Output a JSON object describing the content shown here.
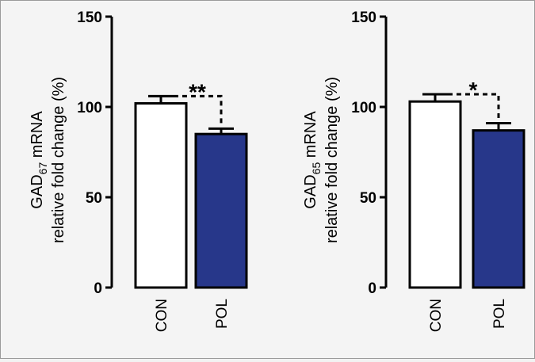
{
  "chart_data": [
    {
      "type": "bar",
      "ylabel_line1": {
        "main": "GAD",
        "sub": "67",
        "rest": " mRNA"
      },
      "ylabel_line2": "relative fold change (%)",
      "ylim": [
        0,
        150
      ],
      "yticks": [
        {
          "value": 0,
          "label": "0"
        },
        {
          "value": 50,
          "label": "50"
        },
        {
          "value": 100,
          "label": "100"
        },
        {
          "value": 150,
          "label": "150"
        }
      ],
      "categories": [
        "CON",
        "POL"
      ],
      "values": [
        102,
        85
      ],
      "errors": [
        4,
        3
      ],
      "bar_colors": [
        "#ffffff",
        "#27378a"
      ],
      "significance": "**"
    },
    {
      "type": "bar",
      "ylabel_line1": {
        "main": "GAD",
        "sub": "65",
        "rest": " mRNA"
      },
      "ylabel_line2": "relative fold change (%)",
      "ylim": [
        0,
        150
      ],
      "yticks": [
        {
          "value": 0,
          "label": "0"
        },
        {
          "value": 50,
          "label": "50"
        },
        {
          "value": 100,
          "label": "100"
        },
        {
          "value": 150,
          "label": "150"
        }
      ],
      "categories": [
        "CON",
        "POL"
      ],
      "values": [
        103,
        87
      ],
      "errors": [
        4,
        4
      ],
      "bar_colors": [
        "#ffffff",
        "#27378a"
      ],
      "significance": "*"
    }
  ]
}
